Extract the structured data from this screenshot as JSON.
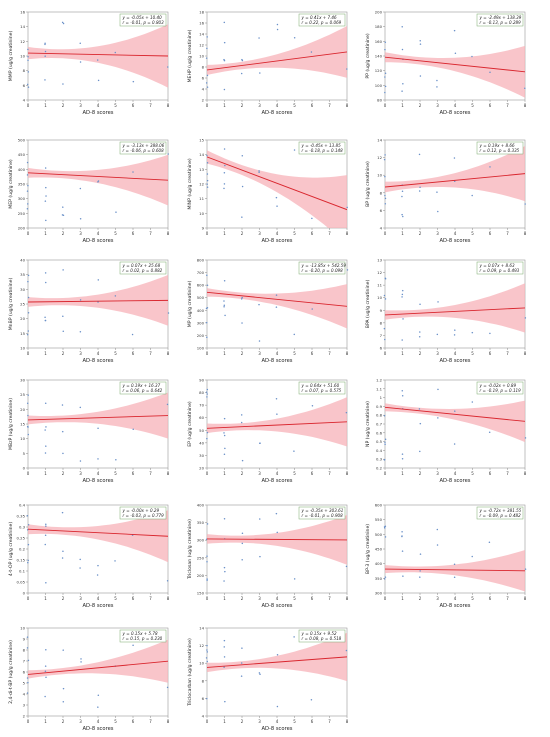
{
  "chart_data": [
    {
      "type": "scatter",
      "xlabel": "AD-8 scores",
      "ylabel": "MMP (ug/g creatinine)",
      "ylim": [
        4,
        16
      ],
      "yticks": [
        4,
        6,
        8,
        10,
        12,
        14,
        16
      ],
      "xlim": [
        0,
        8
      ],
      "xticks": [
        0,
        1,
        2,
        3,
        4,
        5,
        6,
        7,
        8
      ],
      "annotation": [
        "y = -0.05x + 10.40",
        "r = -0.01, p = 0.803"
      ],
      "intercept": 10.4,
      "slope": -0.05,
      "band": 1.1
    },
    {
      "type": "scatter",
      "xlabel": "AD-8 scores",
      "ylabel": "MEHP (ug/g creatinine)",
      "ylim": [
        2,
        18
      ],
      "yticks": [
        2,
        4,
        6,
        8,
        10,
        12,
        14,
        16,
        18
      ],
      "xlim": [
        0,
        8
      ],
      "xticks": [
        0,
        1,
        2,
        3,
        4,
        5,
        6,
        7,
        8
      ],
      "annotation": [
        "y = 0.41x + 7.46",
        "r = 0.22, p = 0.069"
      ],
      "intercept": 7.46,
      "slope": 0.41,
      "band": 1.2
    },
    {
      "type": "scatter",
      "xlabel": "AD-8 scores",
      "ylabel": "PP (ug/g creatinine)",
      "ylim": [
        80,
        200
      ],
      "yticks": [
        80,
        100,
        120,
        140,
        160,
        180,
        200
      ],
      "xlim": [
        0,
        8
      ],
      "xticks": [
        0,
        1,
        2,
        3,
        4,
        5,
        6,
        7,
        8
      ],
      "annotation": [
        "y = -2.49x + 138.39",
        "r = -0.13, p = 0.289"
      ],
      "intercept": 138.39,
      "slope": -2.49,
      "band": 9
    },
    {
      "type": "scatter",
      "xlabel": "AD-8 scores",
      "ylabel": "MEP (ug/g creatinine)",
      "ylim": [
        200,
        500
      ],
      "yticks": [
        200,
        250,
        300,
        350,
        400,
        450,
        500
      ],
      "xlim": [
        0,
        8
      ],
      "xticks": [
        0,
        1,
        2,
        3,
        4,
        5,
        6,
        7,
        8
      ],
      "annotation": [
        "y = -3.13x + 388.06",
        "r = -0.06, p = 0.608"
      ],
      "intercept": 388.06,
      "slope": -3.13,
      "band": 22
    },
    {
      "type": "scatter",
      "xlabel": "AD-8 scores",
      "ylabel": "MINP (ug/g creatinine)",
      "ylim": [
        9,
        15
      ],
      "yticks": [
        9,
        10,
        11,
        12,
        13,
        14,
        15
      ],
      "xlim": [
        0,
        8
      ],
      "xticks": [
        0,
        1,
        2,
        3,
        4,
        5,
        6,
        7,
        8
      ],
      "annotation": [
        "y = -0.45x + 13.85",
        "r = -0.18, p = 0.148"
      ],
      "intercept": 13.85,
      "slope": -0.45,
      "band": 0.6
    },
    {
      "type": "scatter",
      "xlabel": "AD-8 scores",
      "ylabel": "BP (ug/g creatinine)",
      "ylim": [
        4,
        14
      ],
      "yticks": [
        4,
        6,
        8,
        10,
        12,
        14
      ],
      "xlim": [
        0,
        8
      ],
      "xticks": [
        0,
        1,
        2,
        3,
        4,
        5,
        6,
        7,
        8
      ],
      "annotation": [
        "y = 0.19x + 8.66",
        "r = 0.12, p = 0.335"
      ],
      "intercept": 8.66,
      "slope": 0.19,
      "band": 0.8
    },
    {
      "type": "scatter",
      "xlabel": "AD-8 scores",
      "ylabel": "MnBP (ug/g creatinine)",
      "ylim": [
        10,
        40
      ],
      "yticks": [
        10,
        15,
        20,
        25,
        30,
        35,
        40
      ],
      "xlim": [
        0,
        8
      ],
      "xticks": [
        0,
        1,
        2,
        3,
        4,
        5,
        6,
        7,
        8
      ],
      "annotation": [
        "y = 0.07x + 25.68",
        "r = 0.02, p = 0.882"
      ],
      "intercept": 25.68,
      "slope": 0.07,
      "band": 2.2
    },
    {
      "type": "scatter",
      "xlabel": "AD-8 scores",
      "ylabel": "MP (ug/g creatinine)",
      "ylim": [
        100,
        800
      ],
      "yticks": [
        100,
        200,
        300,
        400,
        500,
        600,
        700,
        800
      ],
      "xlim": [
        0,
        8
      ],
      "xticks": [
        0,
        1,
        2,
        3,
        4,
        5,
        6,
        7,
        8
      ],
      "annotation": [
        "y = -13.85x + 542.59",
        "r = -0.20, p = 0.098"
      ],
      "intercept": 542.59,
      "slope": -13.85,
      "band": 45
    },
    {
      "type": "scatter",
      "xlabel": "AD-8 scores",
      "ylabel": "BPA (ug/g creatinine)",
      "ylim": [
        6,
        13
      ],
      "yticks": [
        6,
        7,
        8,
        9,
        10,
        11,
        12,
        13
      ],
      "xlim": [
        0,
        8
      ],
      "xticks": [
        0,
        1,
        2,
        3,
        4,
        5,
        6,
        7,
        8
      ],
      "annotation": [
        "y = 0.07x + 8.63",
        "r = 0.09, p = 0.493"
      ],
      "intercept": 8.63,
      "slope": 0.07,
      "band": 0.5
    },
    {
      "type": "scatter",
      "xlabel": "AD-8 scores",
      "ylabel": "MBzP (ug/g creatinine)",
      "ylim": [
        0,
        30
      ],
      "yticks": [
        0,
        5,
        10,
        15,
        20,
        25,
        30
      ],
      "xlim": [
        0,
        8
      ],
      "xticks": [
        0,
        1,
        2,
        3,
        4,
        5,
        6,
        7,
        8
      ],
      "annotation": [
        "y = 0.19x + 16.37",
        "r = 0.06, p = 0.642"
      ],
      "intercept": 16.37,
      "slope": 0.19,
      "band": 2.0
    },
    {
      "type": "scatter",
      "xlabel": "AD-8 scores",
      "ylabel": "EP (ug/g creatinine)",
      "ylim": [
        20,
        90
      ],
      "yticks": [
        20,
        30,
        40,
        50,
        60,
        70,
        80,
        90
      ],
      "xlim": [
        0,
        8
      ],
      "xticks": [
        0,
        1,
        2,
        3,
        4,
        5,
        6,
        7,
        8
      ],
      "annotation": [
        "y = 0.64x + 51.60",
        "r = 0.07, p = 0.575"
      ],
      "intercept": 51.6,
      "slope": 0.64,
      "band": 5
    },
    {
      "type": "scatter",
      "xlabel": "AD-8 scores",
      "ylabel": "NP (ug/g creatinine)",
      "ylim": [
        0.2,
        1.2
      ],
      "yticks": [
        0.2,
        0.3,
        0.4,
        0.5,
        0.6,
        0.7,
        0.8,
        0.9,
        1.0,
        1.1,
        1.2
      ],
      "xlim": [
        0,
        8
      ],
      "xticks": [
        0,
        1,
        2,
        3,
        4,
        5,
        6,
        7,
        8
      ],
      "annotation": [
        "y = -0.02x + 0.89",
        "r = -0.19, p = 0.119"
      ],
      "intercept": 0.89,
      "slope": -0.02,
      "band": 0.06
    },
    {
      "type": "scatter",
      "xlabel": "AD-8 scores",
      "ylabel": "4-t-OP (ug/g creatinine)",
      "ylim": [
        0,
        0.4
      ],
      "yticks": [
        0.0,
        0.05,
        0.1,
        0.15,
        0.2,
        0.25,
        0.3,
        0.35,
        0.4
      ],
      "xlim": [
        0,
        8
      ],
      "xticks": [
        0,
        1,
        2,
        3,
        4,
        5,
        6,
        7,
        8
      ],
      "annotation": [
        "y = -0.00x + 0.29",
        "r = -0.03, p = 0.779"
      ],
      "intercept": 0.29,
      "slope": -0.004,
      "band": 0.03
    },
    {
      "type": "scatter",
      "xlabel": "AD-8 scores",
      "ylabel": "Triclosan (ug/g creatinine)",
      "ylim": [
        150,
        400
      ],
      "yticks": [
        150,
        200,
        250,
        300,
        350,
        400
      ],
      "xlim": [
        0,
        8
      ],
      "xticks": [
        0,
        1,
        2,
        3,
        4,
        5,
        6,
        7,
        8
      ],
      "annotation": [
        "y = -0.35x + 303.61",
        "r = -0.01, p = 0.908"
      ],
      "intercept": 303.61,
      "slope": -0.35,
      "band": 18
    },
    {
      "type": "scatter",
      "xlabel": "AD-8 scores",
      "ylabel": "BP-3 (ug/g creatinine)",
      "ylim": [
        300,
        600
      ],
      "yticks": [
        300,
        350,
        400,
        450,
        500,
        550,
        600
      ],
      "xlim": [
        0,
        8
      ],
      "xticks": [
        0,
        1,
        2,
        3,
        4,
        5,
        6,
        7,
        8
      ],
      "annotation": [
        "y = -0.72x + 381.55",
        "r = -0.09, p = 0.482"
      ],
      "intercept": 381.55,
      "slope": -0.72,
      "band": 18
    },
    {
      "type": "scatter",
      "xlabel": "AD-8 scores",
      "ylabel": "2,4-di-t-BP (ug/g creatinine)",
      "ylim": [
        2,
        10
      ],
      "yticks": [
        2,
        3,
        4,
        5,
        6,
        7,
        8,
        9,
        10
      ],
      "xlim": [
        0,
        8
      ],
      "xticks": [
        0,
        1,
        2,
        3,
        4,
        5,
        6,
        7,
        8
      ],
      "annotation": [
        "y = 0.15x + 5.78",
        "r = 0.15, p = 0.230"
      ],
      "intercept": 5.78,
      "slope": 0.15,
      "band": 0.5
    },
    {
      "type": "scatter",
      "xlabel": "AD-8 scores",
      "ylabel": "Triclocarban (ug/g creatinine)",
      "ylim": [
        4,
        14
      ],
      "yticks": [
        4,
        6,
        8,
        10,
        12,
        14
      ],
      "xlim": [
        0,
        8
      ],
      "xticks": [
        0,
        1,
        2,
        3,
        4,
        5,
        6,
        7,
        8
      ],
      "annotation": [
        "y = 0.15x + 9.52",
        "r = 0.08, p = 0.518"
      ],
      "intercept": 9.52,
      "slope": 0.15,
      "band": 0.7
    }
  ],
  "colors": {
    "fit_line": "#d9262e",
    "band": "#f7b2b8",
    "points": "#6a90c8",
    "annotation_border": "#7aa96e"
  }
}
